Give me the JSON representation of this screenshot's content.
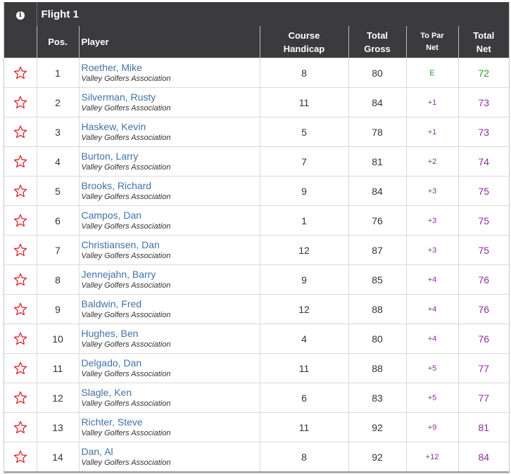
{
  "flight": {
    "title": "Flight 1",
    "info_icon": "info-icon"
  },
  "headers": {
    "pos": "Pos.",
    "player": "Player",
    "course_handicap_line1": "Course",
    "course_handicap_line2": "Handicap",
    "total_gross_line1": "Total",
    "total_gross_line2": "Gross",
    "to_par_net_line1": "To Par",
    "to_par_net_line2": "Net",
    "total_net_line1": "Total",
    "total_net_line2": "Net"
  },
  "colors": {
    "header_bg": "#3b3b3e",
    "player_link": "#3f73a8",
    "over_par": "#8c2f9e",
    "even_or_under": "#2d9c2d",
    "star": "#d9282f"
  },
  "rows": [
    {
      "pos": "1",
      "name": "Roether, Mike",
      "club": "Valley Golfers Association",
      "handicap": "8",
      "gross": "80",
      "to_par": "E",
      "net": "72"
    },
    {
      "pos": "2",
      "name": "Silverman, Rusty",
      "club": "Valley Golfers Association",
      "handicap": "11",
      "gross": "84",
      "to_par": "+1",
      "net": "73"
    },
    {
      "pos": "3",
      "name": "Haskew, Kevin",
      "club": "Valley Golfers Association",
      "handicap": "5",
      "gross": "78",
      "to_par": "+1",
      "net": "73"
    },
    {
      "pos": "4",
      "name": "Burton, Larry",
      "club": "Valley Golfers Association",
      "handicap": "7",
      "gross": "81",
      "to_par": "+2",
      "net": "74"
    },
    {
      "pos": "5",
      "name": "Brooks, Richard",
      "club": "Valley Golfers Association",
      "handicap": "9",
      "gross": "84",
      "to_par": "+3",
      "net": "75"
    },
    {
      "pos": "6",
      "name": "Campos, Dan",
      "club": "Valley Golfers Association",
      "handicap": "1",
      "gross": "76",
      "to_par": "+3",
      "net": "75"
    },
    {
      "pos": "7",
      "name": "Christiansen, Dan",
      "club": "Valley Golfers Association",
      "handicap": "12",
      "gross": "87",
      "to_par": "+3",
      "net": "75"
    },
    {
      "pos": "8",
      "name": "Jennejahn, Barry",
      "club": "Valley Golfers Association",
      "handicap": "9",
      "gross": "85",
      "to_par": "+4",
      "net": "76"
    },
    {
      "pos": "9",
      "name": "Baldwin, Fred",
      "club": "Valley Golfers Association",
      "handicap": "12",
      "gross": "88",
      "to_par": "+4",
      "net": "76"
    },
    {
      "pos": "10",
      "name": "Hughes, Ben",
      "club": "Valley Golfers Association",
      "handicap": "4",
      "gross": "80",
      "to_par": "+4",
      "net": "76"
    },
    {
      "pos": "11",
      "name": "Delgado, Dan",
      "club": "Valley Golfers Association",
      "handicap": "11",
      "gross": "88",
      "to_par": "+5",
      "net": "77"
    },
    {
      "pos": "12",
      "name": "Slagle, Ken",
      "club": "Valley Golfers Association",
      "handicap": "6",
      "gross": "83",
      "to_par": "+5",
      "net": "77"
    },
    {
      "pos": "13",
      "name": "Richter, Steve",
      "club": "Valley Golfers Association",
      "handicap": "11",
      "gross": "92",
      "to_par": "+9",
      "net": "81"
    },
    {
      "pos": "14",
      "name": "Dan, Al",
      "club": "Valley Golfers Association",
      "handicap": "8",
      "gross": "92",
      "to_par": "+12",
      "net": "84"
    }
  ]
}
